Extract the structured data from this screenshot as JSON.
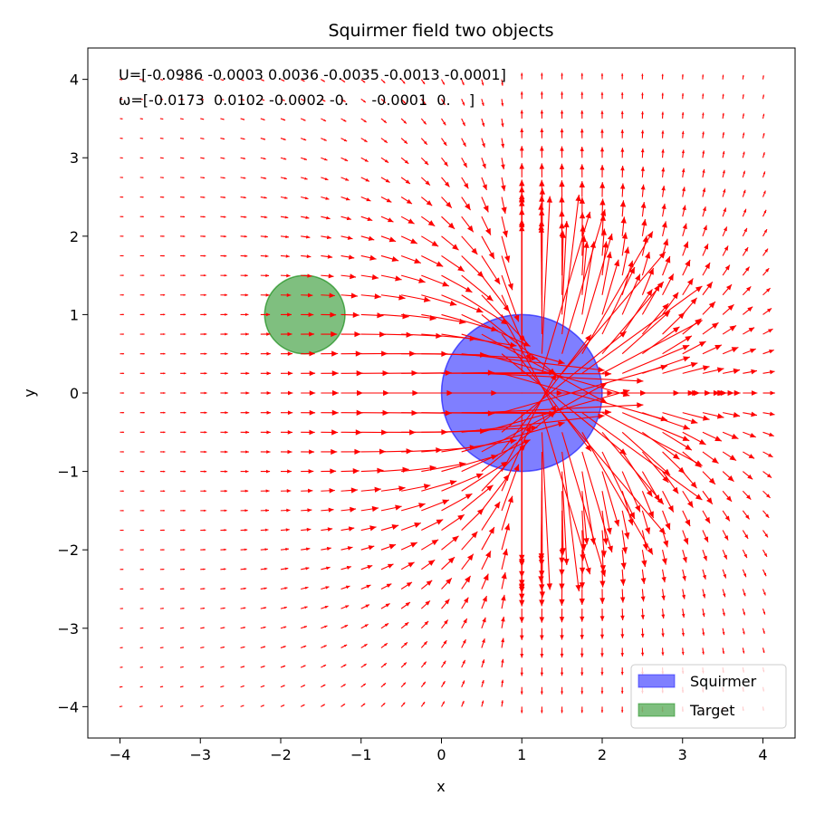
{
  "chart_data": {
    "type": "quiver",
    "title": "Squirmer field two objects",
    "xlabel": "x",
    "ylabel": "y",
    "xlim": [
      -4.4,
      4.4
    ],
    "ylim": [
      -4.4,
      4.4
    ],
    "xticks": [
      -4,
      -3,
      -2,
      -1,
      0,
      1,
      2,
      3,
      4
    ],
    "yticks": [
      -4,
      -3,
      -2,
      -1,
      0,
      1,
      2,
      3,
      4
    ],
    "xtick_labels": [
      "−4",
      "−3",
      "−2",
      "−1",
      "0",
      "1",
      "2",
      "3",
      "4"
    ],
    "ytick_labels": [
      "−4",
      "−3",
      "−2",
      "−1",
      "0",
      "1",
      "2",
      "3",
      "4"
    ],
    "grid": false,
    "annotations": [
      "U=[-0.0986 -0.0003  0.0036 -0.0035 -0.0013 -0.0001]",
      "ω=[-0.0173  0.0102 -0.0002 -0.     -0.0001  0.    ]"
    ],
    "objects": [
      {
        "name": "Squirmer",
        "shape": "circle",
        "center": [
          1.0,
          0.0
        ],
        "radius": 1.0,
        "color": "#0000ff",
        "alpha": 0.5
      },
      {
        "name": "Target",
        "shape": "circle",
        "center": [
          -1.7,
          1.0
        ],
        "radius": 0.5,
        "color": "#008000",
        "alpha": 0.5
      }
    ],
    "legend": {
      "position": "lower-right",
      "entries": [
        {
          "label": "Squirmer",
          "color": "#0000ff"
        },
        {
          "label": "Target",
          "color": "#008000"
        }
      ]
    },
    "field": {
      "color": "#ff0000",
      "grid_x": [
        -4.0,
        4.0
      ],
      "grid_y": [
        -4.0,
        4.0
      ],
      "grid_step": 0.25,
      "description_source": "Sampled squirmer velocity field on a regular grid"
    }
  }
}
